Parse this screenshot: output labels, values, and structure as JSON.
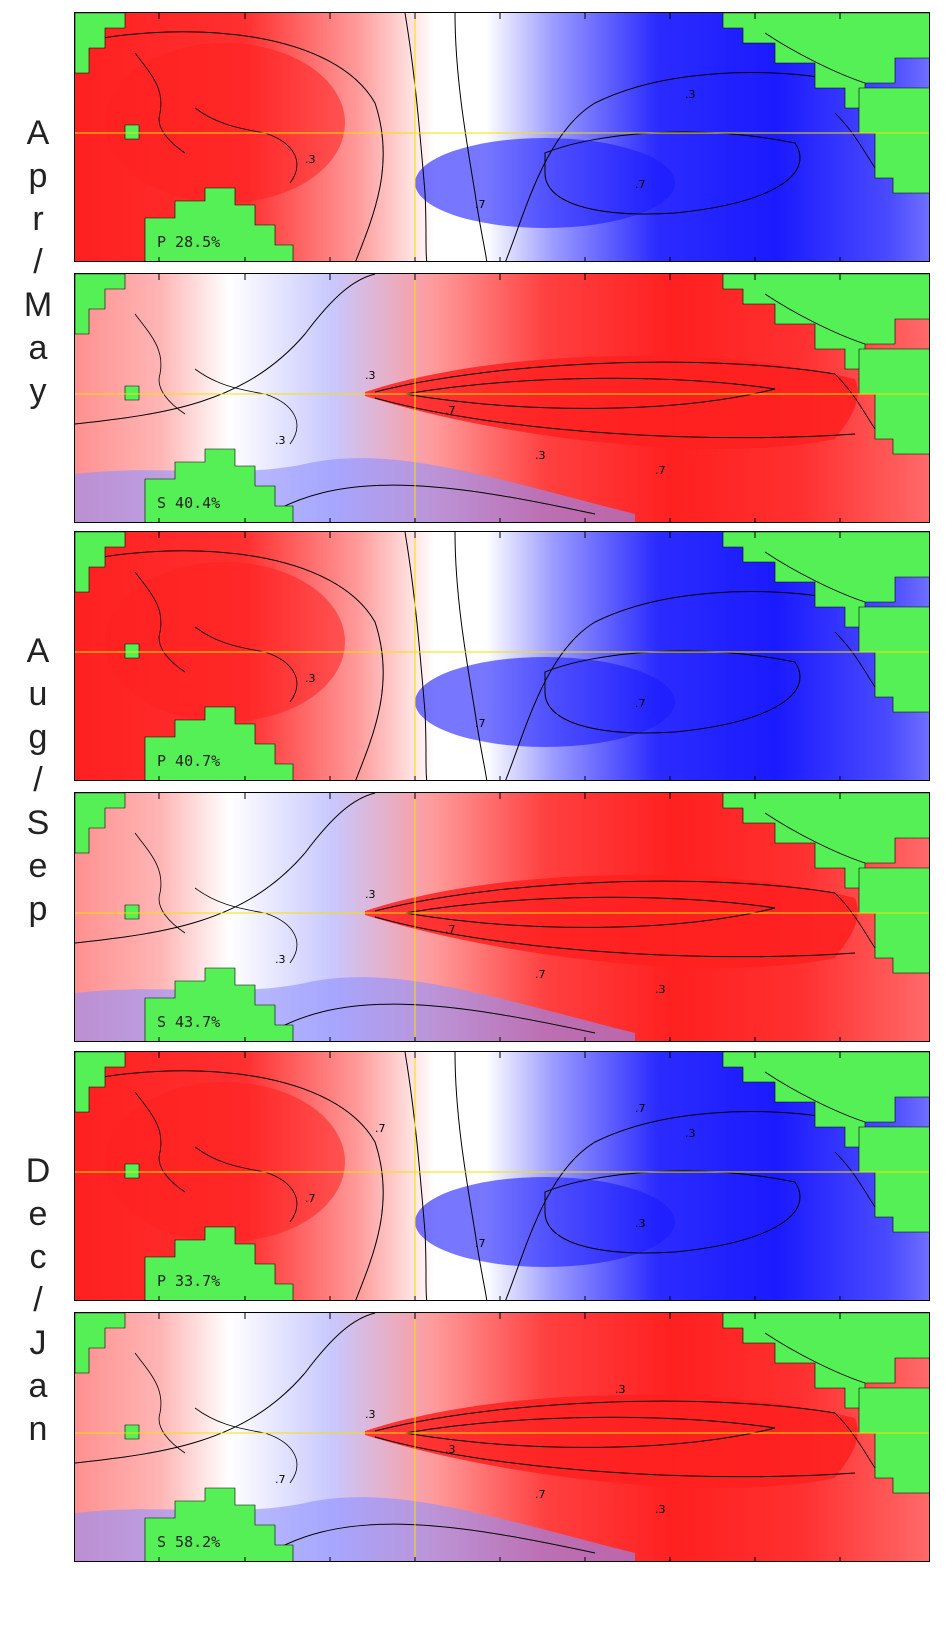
{
  "season_labels": [
    {
      "text": "Apr/May"
    },
    {
      "text": "Aug/Sep"
    },
    {
      "text": "Dec/Jan"
    }
  ],
  "panels": [
    {
      "mode": "P",
      "percent": "28.5%",
      "label": "P 28.5%",
      "pattern": "west-warm",
      "contour_labels": [
        ".3",
        ".7",
        ".7",
        ".3"
      ]
    },
    {
      "mode": "S",
      "percent": "40.4%",
      "label": "S 40.4%",
      "pattern": "tongue",
      "contour_labels": [
        ".3",
        ".7",
        ".3",
        ".7",
        ".3"
      ]
    },
    {
      "mode": "P",
      "percent": "40.7%",
      "label": "P 40.7%",
      "pattern": "west-warm",
      "contour_labels": [
        ".3",
        ".7",
        ".7"
      ]
    },
    {
      "mode": "S",
      "percent": "43.7%",
      "label": "S 43.7%",
      "pattern": "tongue",
      "contour_labels": [
        ".3",
        ".7",
        ".7",
        ".3",
        ".3"
      ]
    },
    {
      "mode": "P",
      "percent": "33.7%",
      "label": "P 33.7%",
      "pattern": "west-warm",
      "contour_labels": [
        ".7",
        ".7",
        ".3",
        ".3",
        ".7",
        ".7"
      ]
    },
    {
      "mode": "S",
      "percent": "58.2%",
      "label": "S 58.2%",
      "pattern": "tongue",
      "contour_labels": [
        ".3",
        ".3",
        ".7",
        ".3",
        ".7",
        ".3"
      ]
    }
  ],
  "colors": {
    "warm": "#ff2020",
    "cold": "#1a1aff",
    "land": "#55f055",
    "reference_line": "#f5e000",
    "contour": "#000000"
  }
}
